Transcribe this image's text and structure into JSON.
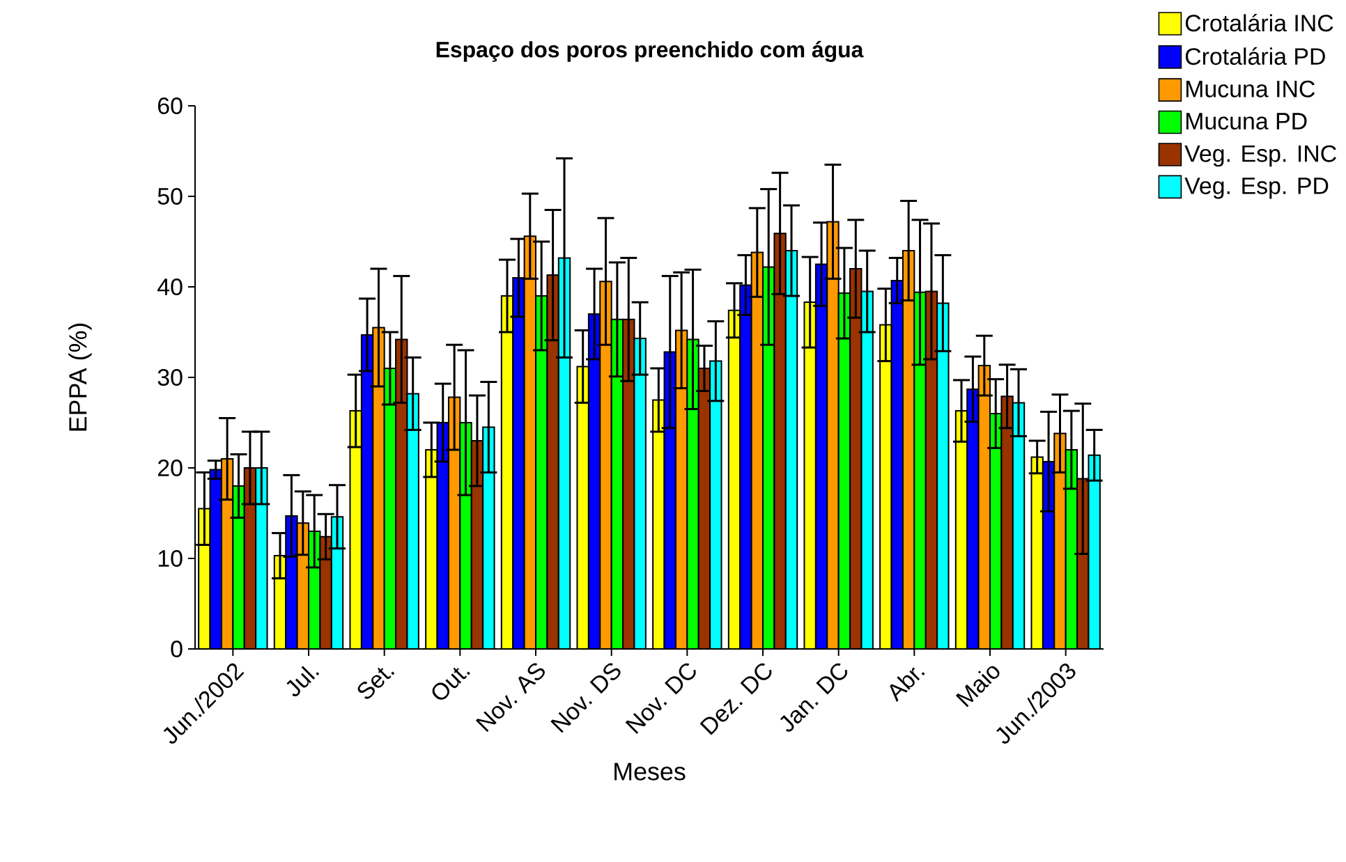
{
  "chart_data": {
    "type": "bar",
    "title": "Espaço dos poros preenchido com água",
    "xlabel": "Meses",
    "ylabel": "EPPA (%)",
    "categories": [
      "Jun./2002",
      "Jul.",
      "Set.",
      "Out.",
      "Nov. AS",
      "Nov. DS",
      "Nov. DC",
      "Dez. DC",
      "Jan. DC",
      "Abr.",
      "Maio",
      "Jun./2003"
    ],
    "series": [
      {
        "name": "Crotalária INC",
        "color": "#ffff00",
        "values": [
          15.5,
          10.3,
          26.3,
          22,
          39,
          31.2,
          27.5,
          37.4,
          38.3,
          35.8,
          26.3,
          21.2
        ],
        "errors": [
          4,
          2.5,
          4,
          3,
          4,
          4,
          3.5,
          3,
          5,
          4,
          3.4,
          1.8
        ]
      },
      {
        "name": "Crotalária PD",
        "color": "#0000ff",
        "values": [
          19.8,
          14.7,
          34.7,
          25,
          41,
          37,
          32.8,
          40.2,
          42.5,
          40.7,
          28.7,
          20.7
        ],
        "errors": [
          1,
          4.5,
          4,
          4.3,
          4.3,
          5,
          8.4,
          3.3,
          4.6,
          2.5,
          3.6,
          5.5
        ]
      },
      {
        "name": "Mucuna INC",
        "color": "#ff9900",
        "values": [
          21,
          13.9,
          35.5,
          27.8,
          45.6,
          40.6,
          35.2,
          43.8,
          47.2,
          44,
          31.3,
          23.8
        ],
        "errors": [
          4.5,
          3.5,
          6.5,
          5.8,
          4.7,
          7,
          6.4,
          4.9,
          6.3,
          5.5,
          3.3,
          4.3
        ]
      },
      {
        "name": "Mucuna PD",
        "color": "#00ff00",
        "values": [
          18,
          13,
          31,
          25,
          39,
          36.4,
          34.2,
          42.2,
          39.3,
          39.4,
          26,
          22
        ],
        "errors": [
          3.5,
          4,
          4,
          8,
          6,
          6.3,
          7.7,
          8.6,
          5,
          8,
          3.8,
          4.3
        ]
      },
      {
        "name": "Veg. Esp. INC",
        "color": "#993300",
        "values": [
          20,
          12.4,
          34.2,
          23,
          41.3,
          36.4,
          31,
          45.9,
          42,
          39.5,
          27.9,
          18.8
        ],
        "errors": [
          4,
          2.5,
          7,
          5,
          7.2,
          6.8,
          2.5,
          6.7,
          5.4,
          7.5,
          3.5,
          8.3
        ]
      },
      {
        "name": "Veg. Esp. PD",
        "color": "#00ffff",
        "values": [
          20,
          14.6,
          28.2,
          24.5,
          43.2,
          34.3,
          31.8,
          44,
          39.5,
          38.2,
          27.2,
          21.4
        ],
        "errors": [
          4,
          3.5,
          4,
          5,
          11,
          4,
          4.4,
          5,
          4.5,
          5.3,
          3.7,
          2.8
        ]
      }
    ],
    "ylim": [
      0,
      60
    ],
    "yticks": [
      0,
      10,
      20,
      30,
      40,
      50,
      60
    ],
    "legend": "top right"
  }
}
